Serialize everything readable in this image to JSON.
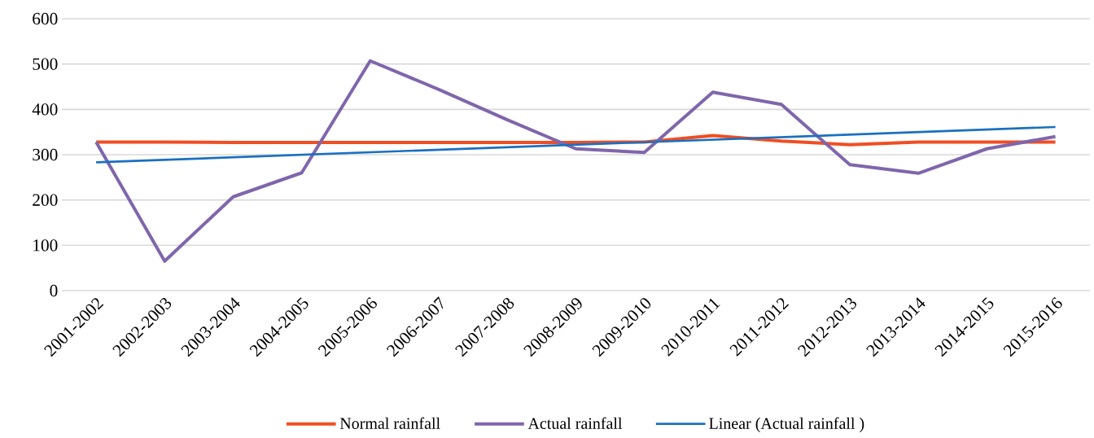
{
  "chart_data": {
    "type": "line",
    "categories": [
      "2001-2002",
      "2002-2003",
      "2003-2004",
      "2004-2005",
      "2005-2006",
      "2006-2007",
      "2007-2008",
      "2008-2009",
      "2009-2010",
      "2010-2011",
      "2011-2012",
      "2012-2013",
      "2013-2014",
      "2014-2015",
      "2015-2016"
    ],
    "series": [
      {
        "name": "Normal rainfall",
        "color": "#f04e23",
        "values": [
          328,
          328,
          327,
          327,
          327,
          327,
          327,
          327,
          328,
          342,
          330,
          322,
          328,
          328,
          328
        ]
      },
      {
        "name": "Actual rainfall",
        "color": "#7f66ab",
        "values": [
          328,
          65,
          207,
          260,
          507,
          444,
          377,
          313,
          305,
          438,
          411,
          278,
          259,
          313,
          340
        ]
      },
      {
        "name": "Linear (Actual rainfall )",
        "color": "#1a70c0",
        "type": "line",
        "x": [
          "2001-2002",
          "2015-2016"
        ],
        "values": [
          283,
          361
        ]
      }
    ],
    "ylim": [
      0,
      600
    ],
    "yticks": [
      0,
      100,
      200,
      300,
      400,
      500,
      600
    ],
    "grid": "y",
    "legend": "bottom"
  }
}
